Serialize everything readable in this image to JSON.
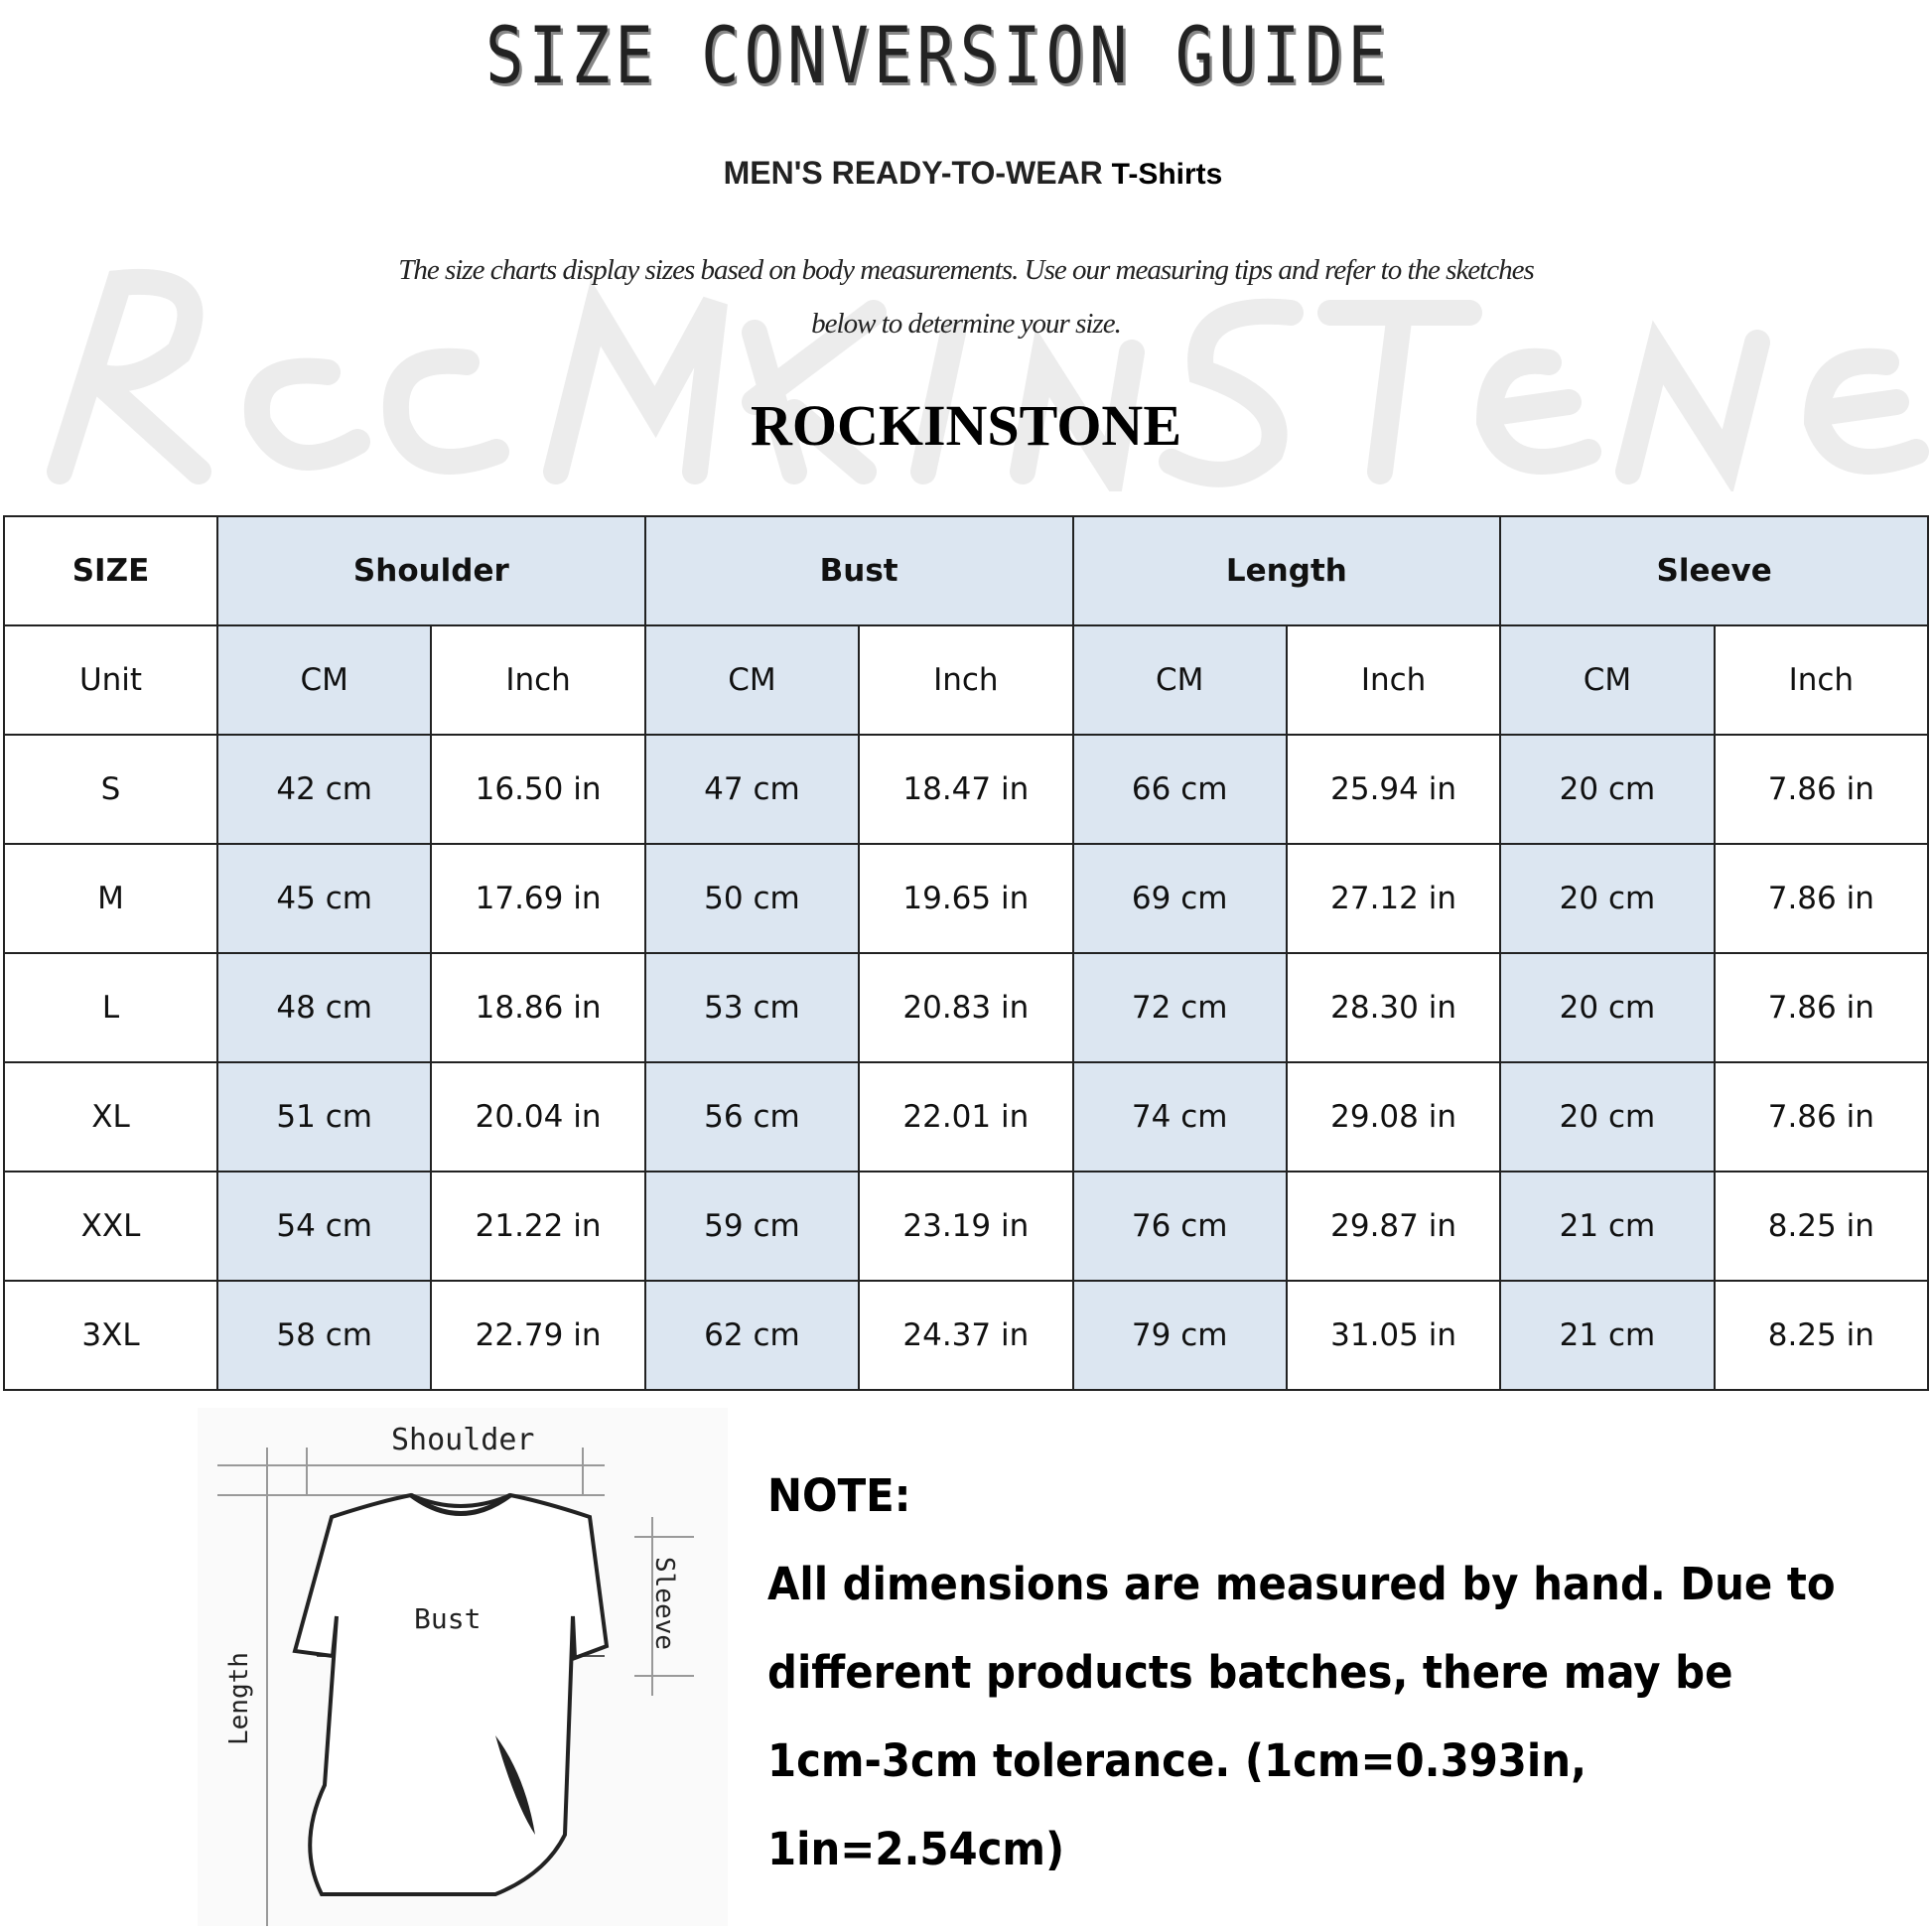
{
  "header": {
    "title": "SIZE CONVERSION GUIDE",
    "subtitle_main": "MEN'S READY-TO-WEAR",
    "subtitle_tail": "T-Shirts",
    "description_line1": "The size charts display sizes based on body measurements. Use our measuring tips and refer to the sketches",
    "description_line2": "below to determine your size.",
    "brand": "ROCKINSTONE",
    "watermark": "Rock In Stone"
  },
  "table": {
    "size_label": "SIZE",
    "unit_label": "Unit",
    "groups": [
      "Shoulder",
      "Bust",
      "Length",
      "Sleeve"
    ],
    "units": [
      "CM",
      "Inch",
      "CM",
      "Inch",
      "CM",
      "Inch",
      "CM",
      "Inch"
    ],
    "rows": [
      {
        "size": "S",
        "values": [
          "42 cm",
          "16.50 in",
          "47 cm",
          "18.47  in",
          "66 cm",
          "25.94  in",
          "20 cm",
          "7.86  in"
        ]
      },
      {
        "size": "M",
        "values": [
          "45 cm",
          "17.69  in",
          "50 cm",
          "19.65  in",
          "69 cm",
          "27.12  in",
          "20 cm",
          "7.86  in"
        ]
      },
      {
        "size": "L",
        "values": [
          "48 cm",
          "18.86  in",
          "53 cm",
          "20.83  in",
          "72 cm",
          "28.30  in",
          "20 cm",
          "7.86  in"
        ]
      },
      {
        "size": "XL",
        "values": [
          "51 cm",
          "20.04  in",
          "56 cm",
          "22.01  in",
          "74 cm",
          "29.08  in",
          "20 cm",
          "7.86  in"
        ]
      },
      {
        "size": "XXL",
        "values": [
          "54 cm",
          "21.22  in",
          "59 cm",
          "23.19  in",
          "76 cm",
          "29.87  in",
          "21 cm",
          "8.25  in"
        ]
      },
      {
        "size": "3XL",
        "values": [
          "58 cm",
          "22.79  in",
          "62 cm",
          "24.37  in",
          "79 cm",
          "31.05  in",
          "21 cm",
          "8.25  in"
        ]
      }
    ],
    "header_fill": "#dce6f1"
  },
  "diagram": {
    "shoulder": "Shoulder",
    "bust": "Bust",
    "sleeve": "Sleeve",
    "length": "Length"
  },
  "note": {
    "heading": "NOTE:",
    "line1": "All dimensions are measured by hand. Due to",
    "line2": "different products batches, there may be",
    "line3": "1cm-3cm tolerance. (1cm=0.393in, 1in=2.54cm)"
  }
}
